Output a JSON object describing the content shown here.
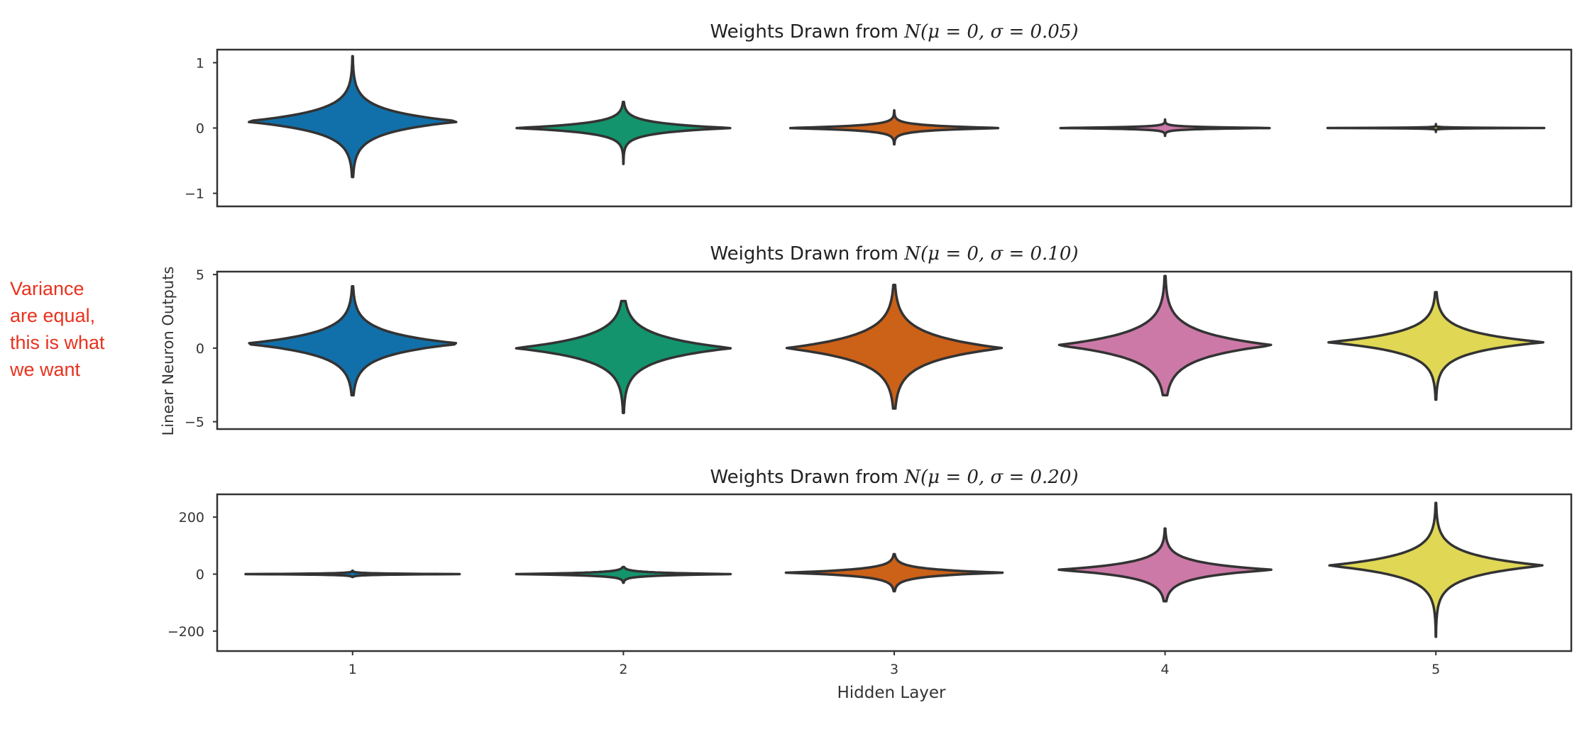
{
  "annotation": {
    "lines": [
      "Variance",
      "are equal,",
      "this is what",
      "we want"
    ],
    "color": "#e8321e"
  },
  "chart_data": {
    "type": "violin",
    "palette": [
      "#1170aa",
      "#13946d",
      "#cc6118",
      "#cc79a7",
      "#e0d755"
    ],
    "edge_color": "#333333",
    "shared_x": {
      "label": "Hidden Layer",
      "categories": [
        "1",
        "2",
        "3",
        "4",
        "5"
      ]
    },
    "shared_y_label": "Linear Neuron Outputs",
    "grid": false,
    "panels": [
      {
        "title": "Weights Drawn from N(μ = 0, σ = 0.05)",
        "title_parts": {
          "prefix": "Weights Drawn from ",
          "math": "N(μ = 0, σ = 0.05)"
        },
        "ylim": [
          -1.2,
          1.2
        ],
        "yticks": [
          -1,
          0,
          1
        ],
        "ytick_labels": [
          "−1",
          "0",
          "1"
        ],
        "violins": [
          {
            "layer": "1",
            "min": -0.75,
            "max": 1.1,
            "center": 0.1,
            "sd": 0.26
          },
          {
            "layer": "2",
            "min": -0.55,
            "max": 0.4,
            "center": 0.0,
            "sd": 0.12
          },
          {
            "layer": "3",
            "min": -0.25,
            "max": 0.27,
            "center": 0.0,
            "sd": 0.06
          },
          {
            "layer": "4",
            "min": -0.12,
            "max": 0.13,
            "center": 0.0,
            "sd": 0.025
          },
          {
            "layer": "5",
            "min": -0.06,
            "max": 0.06,
            "center": 0.0,
            "sd": 0.008
          }
        ]
      },
      {
        "title": "Weights Drawn from N(μ = 0, σ = 0.10)",
        "title_parts": {
          "prefix": "Weights Drawn from ",
          "math": "N(μ = 0, σ = 0.10)"
        },
        "ylim": [
          -5.5,
          5.2
        ],
        "yticks": [
          -5,
          0,
          5
        ],
        "ytick_labels": [
          "−5",
          "0",
          "5"
        ],
        "violins": [
          {
            "layer": "1",
            "min": -3.2,
            "max": 4.2,
            "center": 0.3,
            "sd": 1.2
          },
          {
            "layer": "2",
            "min": -4.4,
            "max": 3.2,
            "center": 0.0,
            "sd": 1.3
          },
          {
            "layer": "3",
            "min": -4.1,
            "max": 4.3,
            "center": 0.0,
            "sd": 1.45
          },
          {
            "layer": "4",
            "min": -3.2,
            "max": 4.9,
            "center": 0.2,
            "sd": 1.4
          },
          {
            "layer": "5",
            "min": -3.5,
            "max": 3.8,
            "center": 0.4,
            "sd": 1.1
          }
        ]
      },
      {
        "title": "Weights Drawn from N(μ = 0, σ = 0.20)",
        "title_parts": {
          "prefix": "Weights Drawn from ",
          "math": "N(μ = 0, σ = 0.20)"
        },
        "ylim": [
          -270,
          280
        ],
        "yticks": [
          -200,
          0,
          200
        ],
        "ytick_labels": [
          "−200",
          "0",
          "200"
        ],
        "violins": [
          {
            "layer": "1",
            "min": -10,
            "max": 12,
            "center": 0,
            "sd": 3
          },
          {
            "layer": "2",
            "min": -30,
            "max": 25,
            "center": 0,
            "sd": 8
          },
          {
            "layer": "3",
            "min": -60,
            "max": 70,
            "center": 5,
            "sd": 20
          },
          {
            "layer": "4",
            "min": -95,
            "max": 160,
            "center": 15,
            "sd": 40
          },
          {
            "layer": "5",
            "min": -220,
            "max": 250,
            "center": 30,
            "sd": 60
          }
        ]
      }
    ]
  }
}
